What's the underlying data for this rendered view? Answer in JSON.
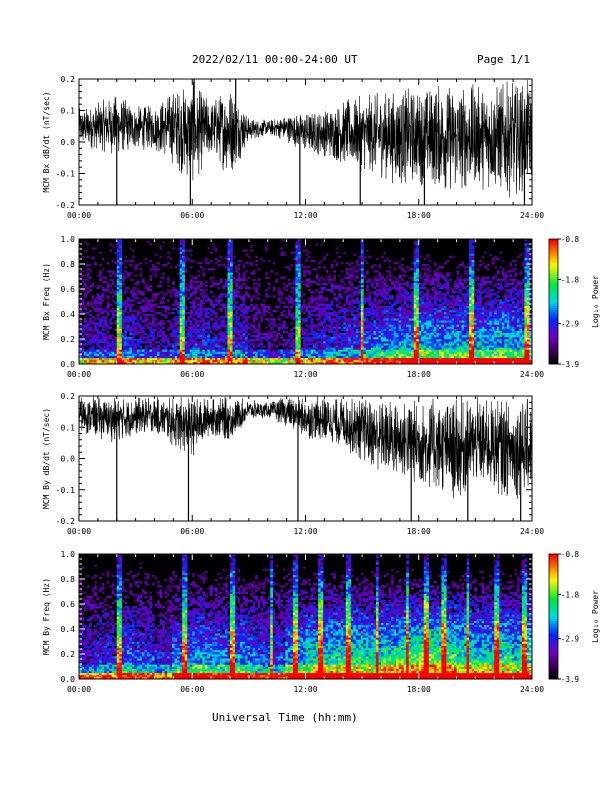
{
  "header": {
    "title": "2022/02/11  00:00-24:00 UT",
    "page": "Page 1/1"
  },
  "xaxis_label": "Universal Time (hh:mm)",
  "chart_data": [
    {
      "type": "line",
      "id": "bx-dbdt",
      "title": "",
      "ylabel": "MCM Bx dB/dt (nT/sec)",
      "xlabel": "",
      "x_ticks": [
        "00:00",
        "06:00",
        "12:00",
        "18:00",
        "24:00"
      ],
      "xlim": [
        0,
        24
      ],
      "ylim": [
        -0.2,
        0.2
      ],
      "y_ticks": [
        -0.2,
        -0.1,
        0.0,
        0.1,
        0.2
      ],
      "y_tick_labels": [
        "-0.2",
        "-0.1",
        "0.0",
        "0.1",
        "0.2"
      ],
      "baseline": 0.05,
      "envelope": [
        {
          "x": 0,
          "lo": -0.02,
          "hi": 0.11
        },
        {
          "x": 1,
          "lo": -0.03,
          "hi": 0.13
        },
        {
          "x": 2,
          "lo": -0.05,
          "hi": 0.16
        },
        {
          "x": 3,
          "lo": -0.03,
          "hi": 0.12
        },
        {
          "x": 4,
          "lo": -0.03,
          "hi": 0.12
        },
        {
          "x": 5,
          "lo": -0.08,
          "hi": 0.18
        },
        {
          "x": 6,
          "lo": -0.15,
          "hi": 0.2
        },
        {
          "x": 7,
          "lo": -0.05,
          "hi": 0.14
        },
        {
          "x": 8,
          "lo": -0.12,
          "hi": 0.2
        },
        {
          "x": 9,
          "lo": 0.0,
          "hi": 0.08
        },
        {
          "x": 10,
          "lo": 0.02,
          "hi": 0.07
        },
        {
          "x": 11,
          "lo": 0.0,
          "hi": 0.09
        },
        {
          "x": 12,
          "lo": -0.04,
          "hi": 0.1
        },
        {
          "x": 13,
          "lo": -0.05,
          "hi": 0.11
        },
        {
          "x": 14,
          "lo": -0.08,
          "hi": 0.14
        },
        {
          "x": 15,
          "lo": -0.1,
          "hi": 0.15
        },
        {
          "x": 16,
          "lo": -0.12,
          "hi": 0.17
        },
        {
          "x": 17,
          "lo": -0.15,
          "hi": 0.18
        },
        {
          "x": 18,
          "lo": -0.14,
          "hi": 0.18
        },
        {
          "x": 19,
          "lo": -0.16,
          "hi": 0.2
        },
        {
          "x": 20,
          "lo": -0.18,
          "hi": 0.2
        },
        {
          "x": 21,
          "lo": -0.15,
          "hi": 0.19
        },
        {
          "x": 22,
          "lo": -0.17,
          "hi": 0.2
        },
        {
          "x": 23,
          "lo": -0.18,
          "hi": 0.2
        },
        {
          "x": 24,
          "lo": -0.15,
          "hi": 0.2
        }
      ],
      "spikes": [
        {
          "x": 2.0,
          "y": -0.2
        },
        {
          "x": 5.9,
          "y": -0.2
        },
        {
          "x": 6.1,
          "y": 0.2
        },
        {
          "x": 8.3,
          "y": 0.2
        },
        {
          "x": 11.7,
          "y": -0.2
        },
        {
          "x": 14.9,
          "y": -0.2
        },
        {
          "x": 18.3,
          "y": -0.2
        },
        {
          "x": 23.6,
          "y": -0.2
        }
      ]
    },
    {
      "type": "heatmap",
      "id": "bx-freq",
      "title": "",
      "ylabel": "MCM Bx Freq (Hz)",
      "xlabel": "",
      "x_ticks": [
        "00:00",
        "06:00",
        "12:00",
        "18:00",
        "24:00"
      ],
      "xlim": [
        0,
        24
      ],
      "ylim": [
        0.0,
        1.0
      ],
      "y_ticks": [
        0.0,
        0.2,
        0.4,
        0.6,
        0.8,
        1.0
      ],
      "y_tick_labels": [
        "0.0",
        "0.2",
        "0.4",
        "0.6",
        "0.8",
        "1.0"
      ],
      "colorbar": {
        "label": "Log₁₀ Power",
        "min": -3.9,
        "max": -0.8,
        "ticks": [
          -3.9,
          -2.9,
          -1.8,
          -0.8
        ],
        "tick_labels": [
          "-3.9",
          "-2.9",
          "-1.8",
          "-0.8"
        ]
      },
      "activity_by_hour": [
        0.2,
        0.25,
        0.35,
        0.25,
        0.2,
        0.3,
        0.35,
        0.3,
        0.35,
        0.2,
        0.15,
        0.2,
        0.3,
        0.35,
        0.4,
        0.45,
        0.5,
        0.55,
        0.6,
        0.55,
        0.6,
        0.55,
        0.6,
        0.55
      ],
      "bright_streaks_hours": [
        2.1,
        5.5,
        8.0,
        11.6,
        15.0,
        17.9,
        20.8,
        23.7
      ]
    },
    {
      "type": "line",
      "id": "by-dbdt",
      "title": "",
      "ylabel": "MCM By dB/dt (nT/sec)",
      "xlabel": "",
      "x_ticks": [
        "00:00",
        "06:00",
        "12:00",
        "18:00",
        "24:00"
      ],
      "xlim": [
        0,
        24
      ],
      "ylim": [
        -0.2,
        0.2
      ],
      "y_ticks": [
        -0.2,
        -0.1,
        0.0,
        0.1,
        0.2
      ],
      "y_tick_labels": [
        "-0.2",
        "-0.1",
        "0.0",
        "0.1",
        "0.2"
      ],
      "baseline": 0.15,
      "envelope": [
        {
          "x": 0,
          "lo": 0.08,
          "hi": 0.2
        },
        {
          "x": 1,
          "lo": 0.06,
          "hi": 0.2
        },
        {
          "x": 2,
          "lo": 0.05,
          "hi": 0.2
        },
        {
          "x": 3,
          "lo": 0.07,
          "hi": 0.2
        },
        {
          "x": 4,
          "lo": 0.08,
          "hi": 0.2
        },
        {
          "x": 5,
          "lo": 0.03,
          "hi": 0.2
        },
        {
          "x": 6,
          "lo": 0.0,
          "hi": 0.2
        },
        {
          "x": 7,
          "lo": 0.07,
          "hi": 0.2
        },
        {
          "x": 8,
          "lo": 0.05,
          "hi": 0.2
        },
        {
          "x": 9,
          "lo": 0.12,
          "hi": 0.19
        },
        {
          "x": 10,
          "lo": 0.13,
          "hi": 0.18
        },
        {
          "x": 11,
          "lo": 0.1,
          "hi": 0.2
        },
        {
          "x": 12,
          "lo": 0.06,
          "hi": 0.2
        },
        {
          "x": 13,
          "lo": 0.05,
          "hi": 0.2
        },
        {
          "x": 14,
          "lo": 0.03,
          "hi": 0.2
        },
        {
          "x": 15,
          "lo": -0.02,
          "hi": 0.2
        },
        {
          "x": 16,
          "lo": -0.06,
          "hi": 0.2
        },
        {
          "x": 17,
          "lo": -0.08,
          "hi": 0.2
        },
        {
          "x": 18,
          "lo": -0.1,
          "hi": 0.2
        },
        {
          "x": 19,
          "lo": -0.12,
          "hi": 0.2
        },
        {
          "x": 20,
          "lo": -0.15,
          "hi": 0.2
        },
        {
          "x": 21,
          "lo": -0.1,
          "hi": 0.2
        },
        {
          "x": 22,
          "lo": -0.12,
          "hi": 0.2
        },
        {
          "x": 23,
          "lo": -0.14,
          "hi": 0.2
        },
        {
          "x": 24,
          "lo": -0.12,
          "hi": 0.2
        }
      ],
      "spikes": [
        {
          "x": 2.0,
          "y": -0.2
        },
        {
          "x": 5.8,
          "y": -0.2
        },
        {
          "x": 11.6,
          "y": -0.2
        },
        {
          "x": 17.6,
          "y": -0.2
        },
        {
          "x": 20.6,
          "y": -0.2
        },
        {
          "x": 23.4,
          "y": -0.2
        }
      ]
    },
    {
      "type": "heatmap",
      "id": "by-freq",
      "title": "",
      "ylabel": "MCM By Freq (Hz)",
      "xlabel": "",
      "x_ticks": [
        "00:00",
        "06:00",
        "12:00",
        "18:00",
        "24:00"
      ],
      "xlim": [
        0,
        24
      ],
      "ylim": [
        0.0,
        1.0
      ],
      "y_ticks": [
        0.0,
        0.2,
        0.4,
        0.6,
        0.8,
        1.0
      ],
      "y_tick_labels": [
        "0.0",
        "0.2",
        "0.4",
        "0.6",
        "0.8",
        "1.0"
      ],
      "colorbar": {
        "label": "Log₁₀ Power",
        "min": -3.9,
        "max": -0.8,
        "ticks": [
          -3.9,
          -2.9,
          -1.8,
          -0.8
        ],
        "tick_labels": [
          "-3.9",
          "-2.9",
          "-1.8",
          "-0.8"
        ]
      },
      "activity_by_hour": [
        0.3,
        0.35,
        0.45,
        0.4,
        0.35,
        0.5,
        0.55,
        0.5,
        0.55,
        0.45,
        0.4,
        0.6,
        0.7,
        0.7,
        0.75,
        0.7,
        0.75,
        0.8,
        0.85,
        0.8,
        0.75,
        0.7,
        0.75,
        0.7
      ],
      "bright_streaks_hours": [
        2.1,
        5.6,
        8.1,
        10.2,
        11.5,
        12.8,
        14.3,
        15.8,
        17.4,
        18.4,
        19.3,
        20.6,
        22.1,
        23.6
      ]
    }
  ]
}
